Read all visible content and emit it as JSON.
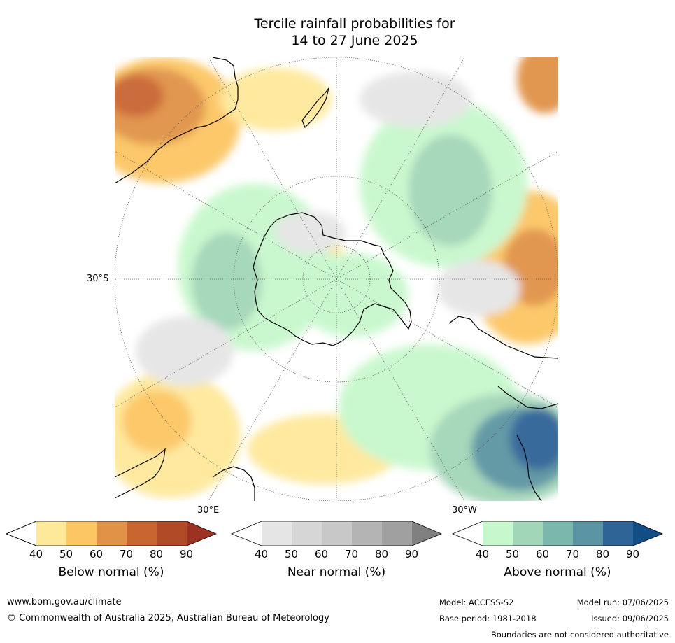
{
  "title": {
    "line1": "Tercile rainfall probabilities for",
    "line2": "14 to 27 June 2025"
  },
  "map": {
    "projection": "south polar stereographic",
    "graticule": [
      "30°S",
      "30°E",
      "30°W"
    ],
    "colors": {
      "land_outline": "#000000",
      "graticule": "#555555"
    }
  },
  "colorbars": [
    {
      "title": "Below normal (%)",
      "ticks": [
        "40",
        "50",
        "60",
        "70",
        "80",
        "90"
      ],
      "colors": [
        "#ffffff",
        "#fee89a",
        "#fcc663",
        "#e09246",
        "#c96530",
        "#b04a27",
        "#9c3222"
      ]
    },
    {
      "title": "Near normal (%)",
      "ticks": [
        "40",
        "50",
        "60",
        "70",
        "80",
        "90"
      ],
      "colors": [
        "#ffffff",
        "#e5e5e5",
        "#d6d6d6",
        "#c8c8c8",
        "#b4b4b4",
        "#a0a0a0",
        "#808080"
      ]
    },
    {
      "title": "Above normal (%)",
      "ticks": [
        "40",
        "50",
        "60",
        "70",
        "80",
        "90"
      ],
      "colors": [
        "#ffffff",
        "#c7f8cc",
        "#a2d6b8",
        "#7cb7ad",
        "#5b94a2",
        "#2f6497",
        "#124d86"
      ]
    }
  ],
  "footer": {
    "website": "www.bom.gov.au/climate",
    "copyright": "© Commonwealth of Australia 2025, Australian Bureau of Meteorology",
    "model": "Model: ACCESS-S2",
    "model_run": "Model run: 07/06/2025",
    "base_period": "Base period: 1981-2018",
    "issued": "Issued: 09/06/2025",
    "disclaimer": "Boundaries are not considered authoritative"
  }
}
